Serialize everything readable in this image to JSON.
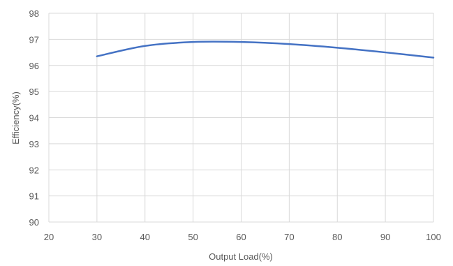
{
  "chart_data": {
    "type": "line",
    "title": "",
    "xlabel": "Output Load(%)",
    "ylabel": "Efficiency(%)",
    "xlim": [
      20,
      100
    ],
    "ylim": [
      90,
      98
    ],
    "x_ticks": [
      20,
      30,
      40,
      50,
      60,
      70,
      80,
      90,
      100
    ],
    "y_ticks": [
      90,
      91,
      92,
      93,
      94,
      95,
      96,
      97,
      98
    ],
    "grid": {
      "vertical": true,
      "horizontal": true
    },
    "legend": "none",
    "series": [
      {
        "color": "#4472c4",
        "smooth": true,
        "x": [
          30,
          40,
          50,
          60,
          70,
          80,
          90,
          100
        ],
        "y": [
          96.35,
          96.75,
          96.9,
          96.9,
          96.82,
          96.68,
          96.5,
          96.3
        ]
      }
    ]
  }
}
